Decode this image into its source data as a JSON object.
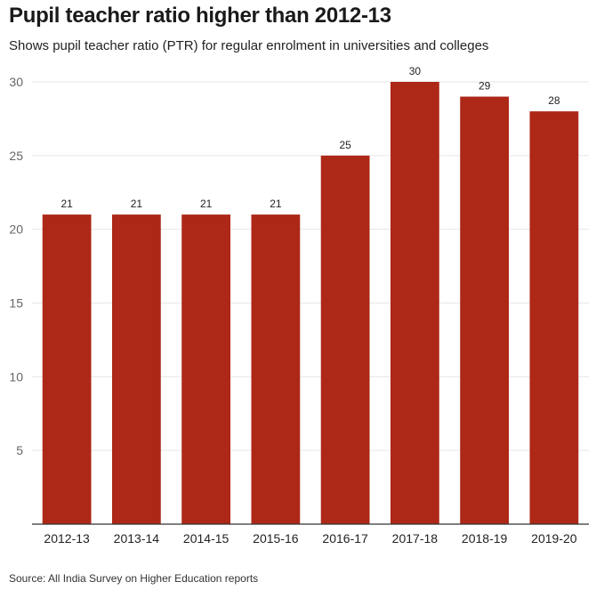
{
  "header": {
    "title": "Pupil teacher ratio higher than 2012-13",
    "subtitle": "Shows pupil teacher ratio (PTR) for regular enrolment in universities and colleges"
  },
  "footer": {
    "source": "Source: All India Survey on Higher Education reports"
  },
  "colors": {
    "bar": "#ad2817",
    "grid": "#e6e6e6",
    "axis": "#333333"
  },
  "chart_data": {
    "type": "bar",
    "title": "Pupil teacher ratio higher than 2012-13",
    "subtitle": "Shows pupil teacher ratio (PTR) for regular enrolment in universities and colleges",
    "xlabel": "",
    "ylabel": "",
    "categories": [
      "2012-13",
      "2013-14",
      "2014-15",
      "2015-16",
      "2016-17",
      "2017-18",
      "2018-19",
      "2019-20"
    ],
    "values": [
      21,
      21,
      21,
      21,
      25,
      30,
      29,
      28
    ],
    "ylim": [
      0,
      30
    ],
    "yticks": [
      5,
      10,
      15,
      20,
      25,
      30
    ],
    "grid": true,
    "data_labels": true
  }
}
